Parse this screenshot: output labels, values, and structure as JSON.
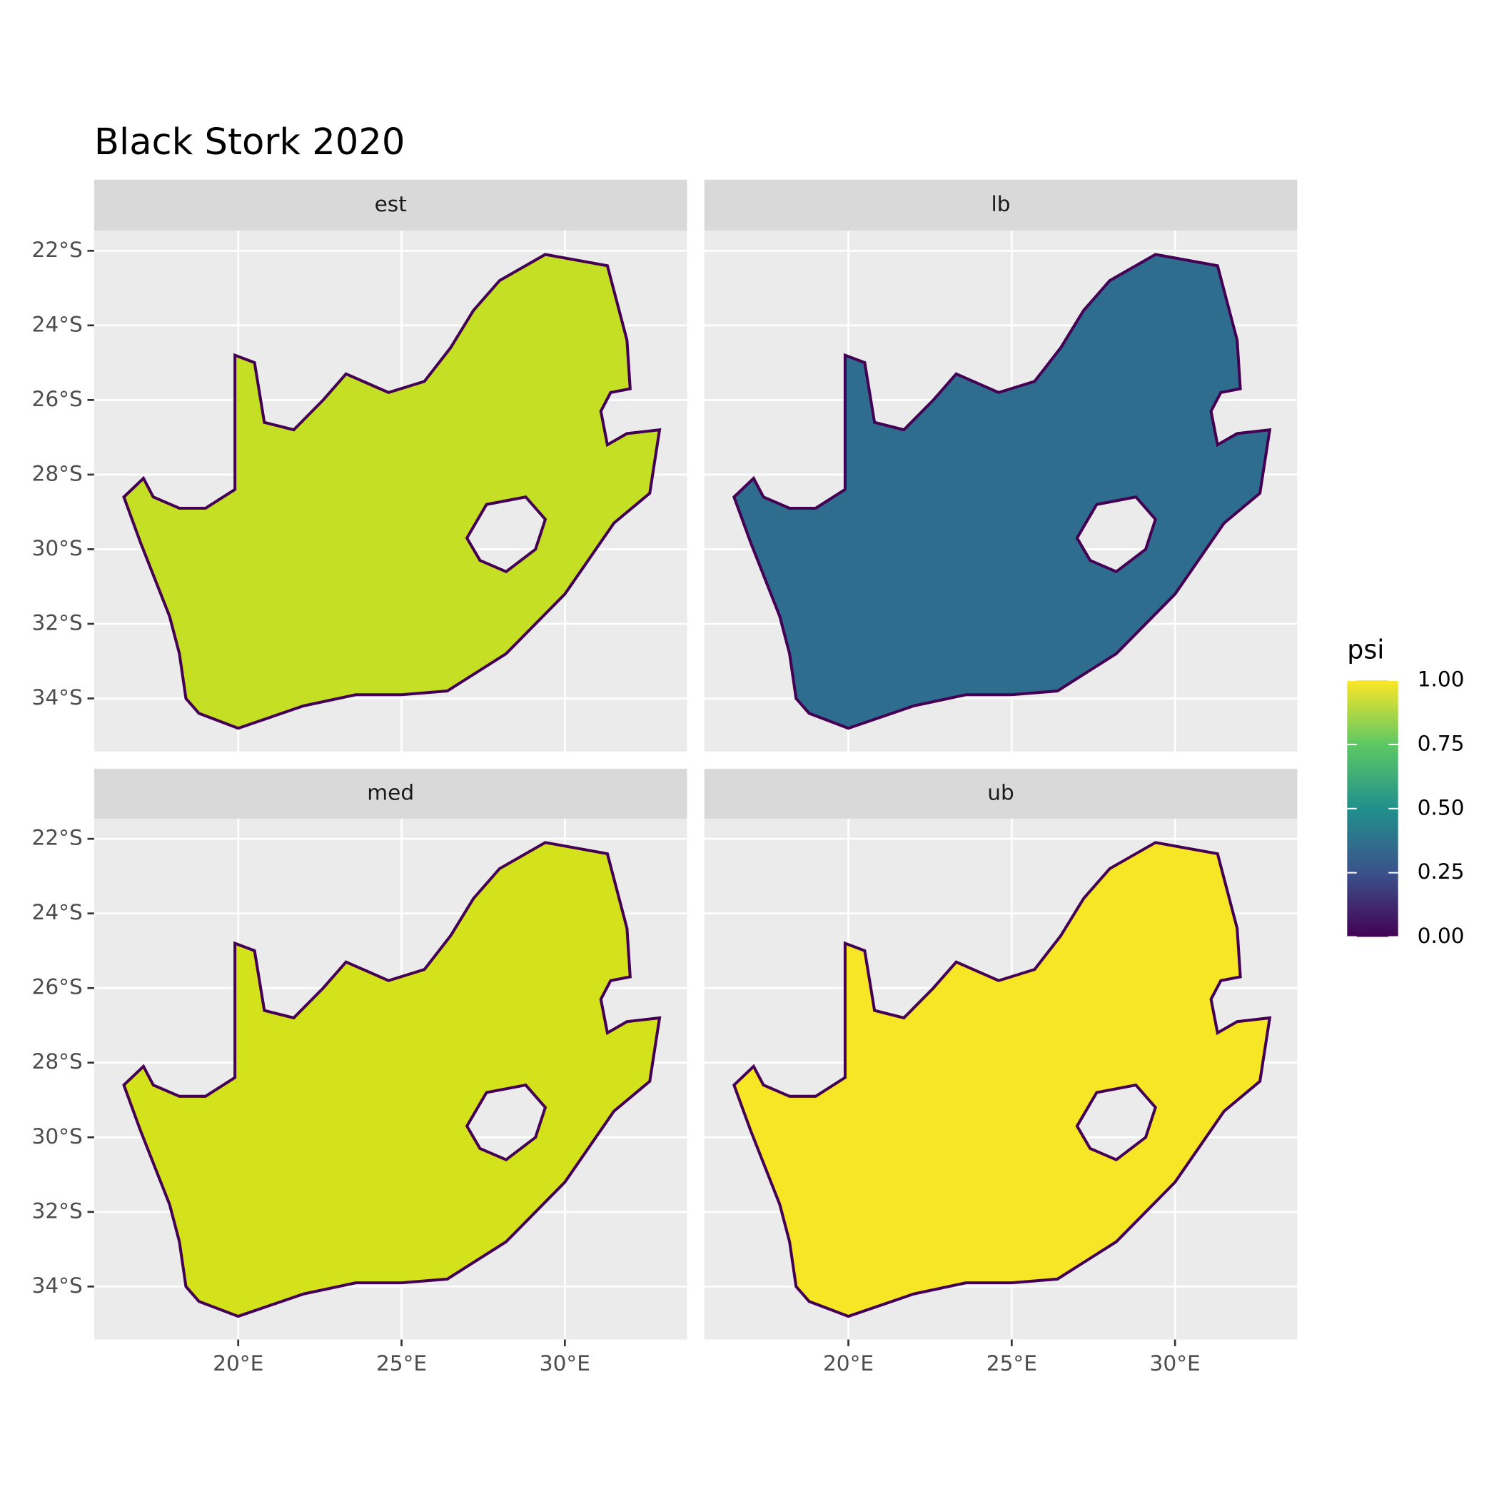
{
  "title": "Black Stork 2020",
  "panels": [
    {
      "label": "est"
    },
    {
      "label": "lb"
    },
    {
      "label": "med"
    },
    {
      "label": "ub"
    }
  ],
  "axes": {
    "xlim": [
      15.59,
      33.74
    ],
    "ylim": [
      -35.42,
      -21.46
    ],
    "xticks": [
      {
        "value": 20,
        "label": "20°E"
      },
      {
        "value": 25,
        "label": "25°E"
      },
      {
        "value": 30,
        "label": "30°E"
      }
    ],
    "yticks": [
      {
        "value": -22,
        "label": "22°S"
      },
      {
        "value": -24,
        "label": "24°S"
      },
      {
        "value": -26,
        "label": "26°S"
      },
      {
        "value": -28,
        "label": "28°S"
      },
      {
        "value": -30,
        "label": "30°S"
      },
      {
        "value": -32,
        "label": "32°S"
      },
      {
        "value": -34,
        "label": "34°S"
      }
    ]
  },
  "legend": {
    "title": "psi",
    "range": [
      0,
      1
    ],
    "ticks": [
      {
        "value": 0,
        "label": "0.00"
      },
      {
        "value": 0.25,
        "label": "0.25"
      },
      {
        "value": 0.5,
        "label": "0.50"
      },
      {
        "value": 0.75,
        "label": "0.75"
      },
      {
        "value": 1,
        "label": "1.00"
      }
    ]
  }
}
